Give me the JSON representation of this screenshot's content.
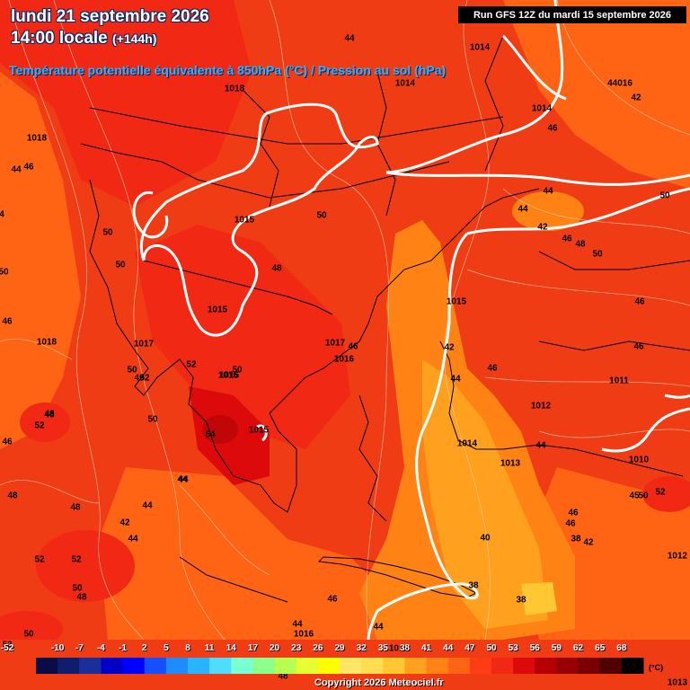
{
  "header": {
    "date_line": "lundi 21 septembre 2026",
    "time_line": "14:00 locale",
    "lead_time": "(+144h)",
    "parameter": "Température potentielle équivalente à 850hPa (°C) / Pression au sol (hPa)",
    "run_info": "Run GFS 12Z du mardi 15 septembre 2026"
  },
  "map_labels": {
    "pressure": [
      "1014",
      "1014",
      "1014",
      "1018",
      "1018",
      "1015",
      "1015",
      "1017",
      "1016",
      "1018",
      "1015",
      "1017",
      "1016",
      "1016",
      "1015",
      "1014",
      "1013",
      "1012",
      "1011",
      "1010",
      "1012",
      "1013",
      "1016",
      "1015"
    ],
    "theta_e": [
      "44",
      "44",
      "44016",
      "42",
      "46",
      "44",
      "46",
      "50",
      "50",
      "50",
      "48",
      "50",
      "44",
      "42",
      "46",
      "48",
      "50",
      "46",
      "46",
      "52",
      "50",
      "48",
      "46",
      "50",
      "52",
      "50",
      "54",
      "50",
      "44",
      "48",
      "44",
      "42",
      "44",
      "44",
      "52",
      "52",
      "50",
      "48",
      "46",
      "44",
      "50",
      "52",
      "46",
      "48",
      "44",
      "46",
      "42",
      "38",
      "38",
      "40",
      "38",
      "46",
      "44",
      "42",
      "4",
      "46",
      "52",
      "45",
      "50",
      "44",
      "52",
      "48",
      "49",
      "48",
      "46"
    ]
  },
  "legend": {
    "ticks": [
      "-10",
      "-7",
      "-4",
      "-1",
      "2",
      "5",
      "8",
      "11",
      "14",
      "17",
      "20",
      "23",
      "26",
      "29",
      "32",
      "35",
      "38",
      "41",
      "44",
      "47",
      "50",
      "53",
      "56",
      "59",
      "62",
      "65",
      "68"
    ],
    "left_partial": "-52",
    "right_partial": "1013",
    "unit": "(°C)",
    "colors": [
      "#0b0b45",
      "#101d6e",
      "#1a2f9a",
      "#0000c8",
      "#0000ff",
      "#1450ff",
      "#1e8cff",
      "#28b4ff",
      "#50dcff",
      "#78ffd2",
      "#8cff8c",
      "#b4ff50",
      "#e6ff32",
      "#ffff00",
      "#ffe664",
      "#ffdc50",
      "#ffc832",
      "#ffa01e",
      "#ff8214",
      "#ff6414",
      "#ff3c14",
      "#f02814",
      "#dc0a0a",
      "#b40000",
      "#960000",
      "#780000",
      "#500000",
      "#000000"
    ]
  },
  "footer": {
    "copyright": "Copyright 2026 Meteociel.fr"
  }
}
